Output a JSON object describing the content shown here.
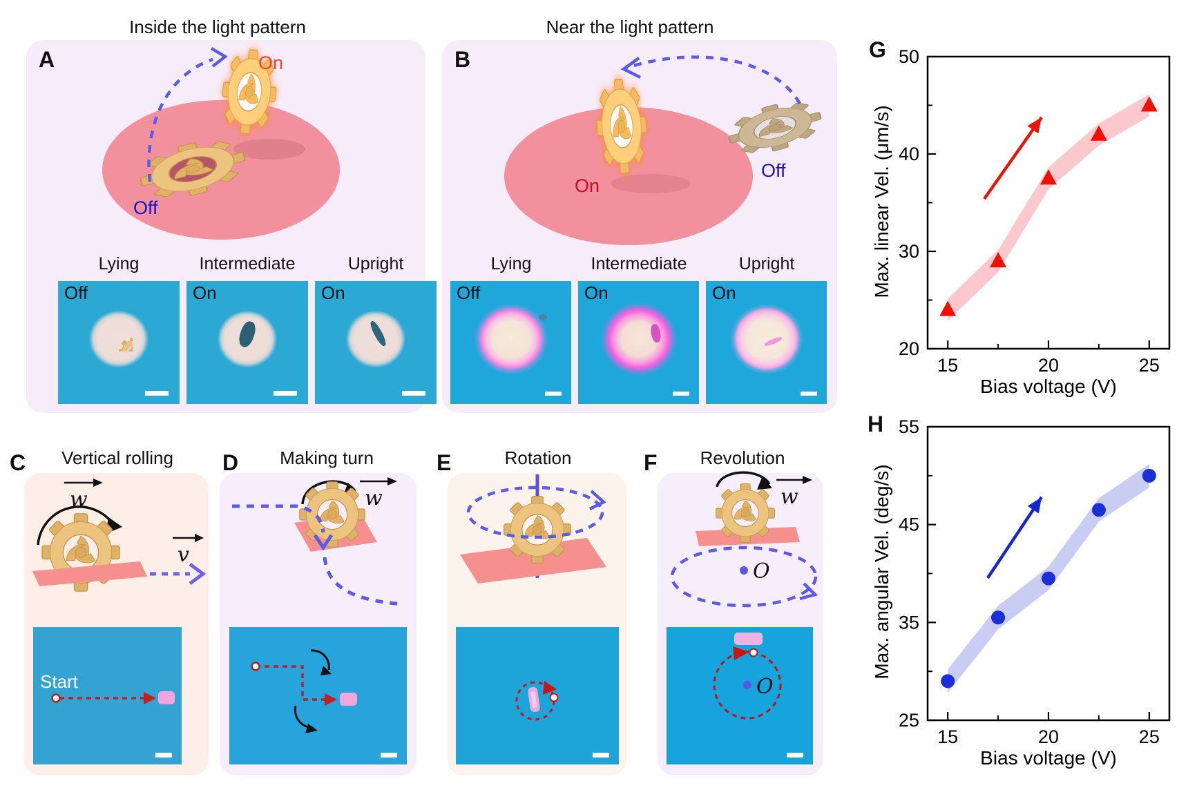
{
  "panels": {
    "A": {
      "letter": "A",
      "title": "Inside the light pattern",
      "scene": {
        "on": "On",
        "off": "Off"
      },
      "micros": [
        {
          "caption": "Lying",
          "state": "Off"
        },
        {
          "caption": "Intermediate",
          "state": "On"
        },
        {
          "caption": "Upright",
          "state": "On"
        }
      ]
    },
    "B": {
      "letter": "B",
      "title": "Near the light pattern",
      "scene": {
        "on": "On",
        "off": "Off"
      },
      "micros": [
        {
          "caption": "Lying",
          "state": "Off"
        },
        {
          "caption": "Intermediate",
          "state": "On"
        },
        {
          "caption": "Upright",
          "state": "On"
        }
      ]
    },
    "C": {
      "letter": "C",
      "title": "Vertical rolling",
      "omega": "w",
      "velocity": "v",
      "start": "Start"
    },
    "D": {
      "letter": "D",
      "title": "Making turn",
      "omega": "w"
    },
    "E": {
      "letter": "E",
      "title": "Rotation"
    },
    "F": {
      "letter": "F",
      "title": "Revolution",
      "omega": "w",
      "center": "O",
      "center_image": "O"
    }
  },
  "chart_data": [
    {
      "id": "G",
      "label": "G",
      "type": "scatter",
      "marker": "triangle",
      "x": [
        15,
        17.5,
        20,
        22.5,
        25
      ],
      "y": [
        24,
        29,
        37.5,
        42,
        45
      ],
      "xlabel": "Bias voltage (V)",
      "ylabel": "Max. linear Vel. (μm/s)",
      "xlim": [
        14,
        26
      ],
      "ylim": [
        20,
        50
      ],
      "xticks": [
        15,
        20,
        25
      ],
      "yticks": [
        20,
        30,
        40,
        50
      ],
      "marker_color": "#ee1100",
      "band_color": "#fbc9cd",
      "arrow_color": "#e81309",
      "grid": false,
      "legend": null
    },
    {
      "id": "H",
      "label": "H",
      "type": "scatter",
      "marker": "circle",
      "x": [
        15,
        17.5,
        20,
        22.5,
        25
      ],
      "y": [
        29,
        35.5,
        39.5,
        46.5,
        50
      ],
      "xlabel": "Bias voltage (V)",
      "ylabel": "Max. angular Vel. (deg/s)",
      "xlim": [
        14,
        26
      ],
      "ylim": [
        25,
        55
      ],
      "xticks": [
        15,
        20,
        25
      ],
      "yticks": [
        25,
        35,
        45,
        55
      ],
      "marker_color": "#1b2fd6",
      "band_color": "#c9cdf4",
      "arrow_color": "#1526cc",
      "grid": false,
      "legend": null
    }
  ]
}
